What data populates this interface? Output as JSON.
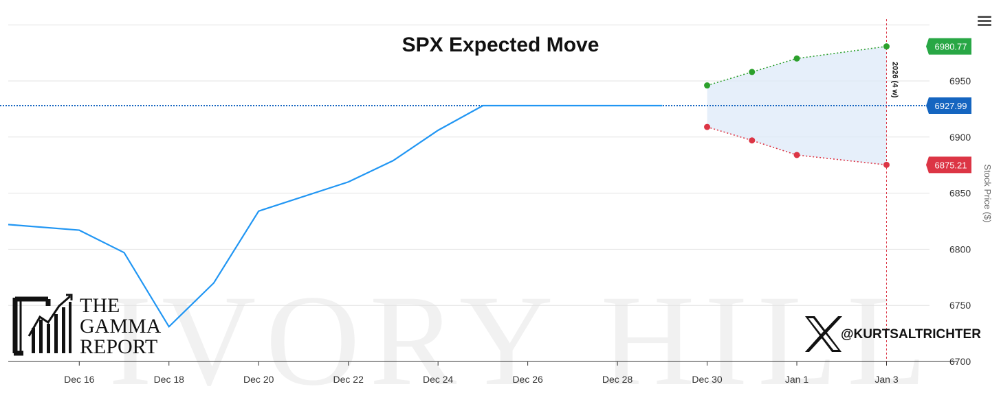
{
  "chart_data": {
    "type": "line",
    "title": "SPX Expected Move",
    "xlabel": "",
    "ylabel": "Stock Price ($)",
    "ylim": [
      6700,
      6950
    ],
    "yticks": [
      6700,
      6750,
      6800,
      6850,
      6900,
      6950
    ],
    "xticks": [
      "Dec 16",
      "Dec 18",
      "Dec 20",
      "Dec 22",
      "Dec 24",
      "Dec 26",
      "Dec 28",
      "Dec 30",
      "Jan 1",
      "Jan 3"
    ],
    "xlim": [
      "2025-12-14T10:00",
      "2026-01-03T23:00"
    ],
    "series": [
      {
        "color": "#2196f3",
        "points": [
          {
            "x": "2025-12-14T10:00",
            "y": 6822
          },
          {
            "x": "2025-12-16",
            "y": 6817
          },
          {
            "x": "2025-12-17",
            "y": 6797
          },
          {
            "x": "2025-12-18",
            "y": 6731
          },
          {
            "x": "2025-12-19",
            "y": 6770
          },
          {
            "x": "2025-12-20",
            "y": 6834
          },
          {
            "x": "2025-12-22",
            "y": 6860
          },
          {
            "x": "2025-12-23",
            "y": 6879
          },
          {
            "x": "2025-12-24",
            "y": 6906
          },
          {
            "x": "2025-12-25",
            "y": 6928
          },
          {
            "x": "2025-12-29",
            "y": 6927.99
          }
        ]
      },
      {
        "color": "#2ca02c",
        "style": "dotted",
        "points": [
          {
            "x": "2025-12-30",
            "y": 6946
          },
          {
            "x": "2025-12-31",
            "y": 6958
          },
          {
            "x": "2026-01-01",
            "y": 6970
          },
          {
            "x": "2026-01-03",
            "y": 6980.77
          }
        ]
      },
      {
        "color": "#dc3545",
        "style": "dotted",
        "points": [
          {
            "x": "2025-12-30",
            "y": 6909
          },
          {
            "x": "2025-12-31",
            "y": 6897
          },
          {
            "x": "2026-01-01",
            "y": 6884
          },
          {
            "x": "2026-01-03",
            "y": 6875.21
          }
        ]
      }
    ],
    "band": {
      "color": "#ddeaf8",
      "from": "2025-12-30",
      "to": "2026-01-03"
    },
    "reference_line": {
      "y": 6927.99,
      "color": "#1565c0"
    },
    "vertical_marker": {
      "x": "2026-01-03",
      "color": "#dc3545",
      "label": "2026 (4 w)"
    },
    "flags": [
      {
        "text": "6980.77",
        "y": 6980.77,
        "color": "#28a745"
      },
      {
        "text": "6927.99",
        "y": 6927.99,
        "color": "#1565c0"
      },
      {
        "text": "6875.21",
        "y": 6875.21,
        "color": "#dc3545"
      }
    ],
    "grid": true
  },
  "branding": {
    "logo_line1": "THE",
    "logo_line2": "GAMMA",
    "logo_line3": "REPORT",
    "handle": "@KURTSALTRICHTER",
    "watermark": "IVORY HILL"
  },
  "toolbar": {
    "menu_icon": "hamburger-menu-icon"
  }
}
